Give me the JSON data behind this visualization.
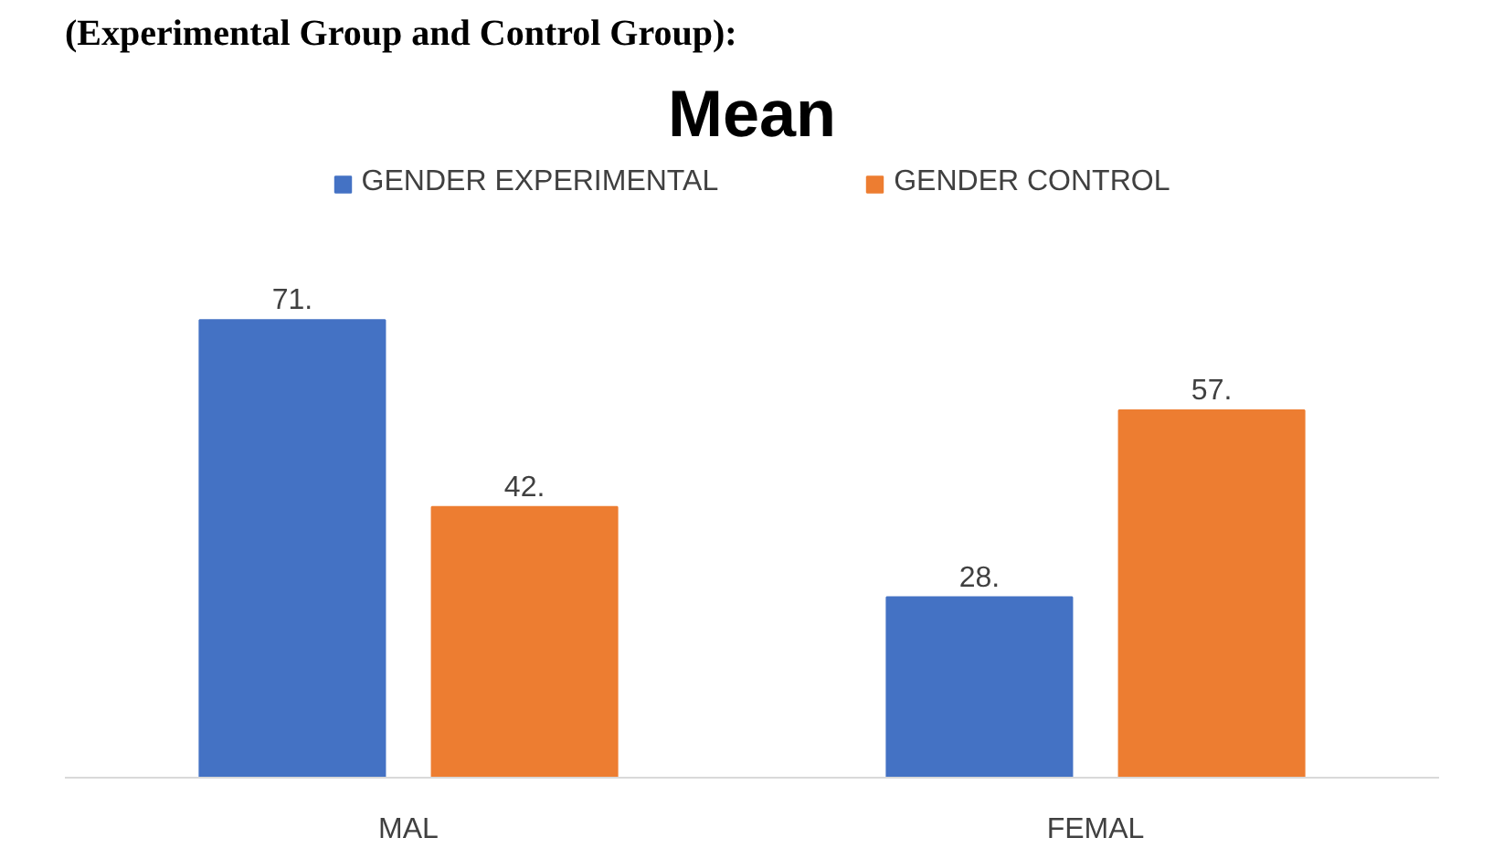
{
  "chart_data": {
    "type": "bar",
    "title": "Mean",
    "annotations": [
      "(Experimental Group and Control Group):"
    ],
    "categories": [
      "MAL",
      "FEMAL"
    ],
    "series": [
      {
        "name": "GENDER EXPERIMENTAL",
        "color": "#4472c4",
        "values": [
          71,
          28
        ],
        "value_labels": [
          "71.",
          "28."
        ]
      },
      {
        "name": "GENDER CONTROL",
        "color": "#ed7d31",
        "values": [
          42,
          57
        ],
        "value_labels": [
          "42.",
          "57."
        ]
      }
    ],
    "legend": "top"
  }
}
